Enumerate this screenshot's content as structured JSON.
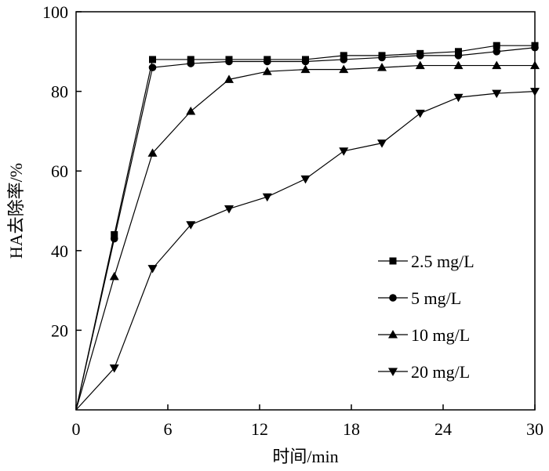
{
  "chart_data": {
    "type": "line",
    "xlabel": "时间/min",
    "ylabel": "HA去除率/%",
    "xlim": [
      0,
      30
    ],
    "ylim": [
      0,
      100
    ],
    "xticks": [
      0,
      6,
      12,
      18,
      24,
      30
    ],
    "yticks": [
      20,
      40,
      60,
      80,
      100
    ],
    "legend_position": "lower-right",
    "grid": false,
    "series": [
      {
        "name": "2.5 mg/L",
        "marker": "square",
        "x": [
          0,
          2.5,
          5,
          7.5,
          10,
          12.5,
          15,
          17.5,
          20,
          22.5,
          25,
          27.5,
          30
        ],
        "y": [
          0,
          44,
          88,
          88,
          88,
          88,
          88,
          89,
          89,
          89.5,
          90,
          91.5,
          91.5
        ]
      },
      {
        "name": "5 mg/L",
        "marker": "circle",
        "x": [
          0,
          2.5,
          5,
          7.5,
          10,
          12.5,
          15,
          17.5,
          20,
          22.5,
          25,
          27.5,
          30
        ],
        "y": [
          0,
          43,
          86,
          87,
          87.5,
          87.5,
          87.5,
          88,
          88.5,
          89,
          89,
          90,
          91
        ]
      },
      {
        "name": "10 mg/L",
        "marker": "triangle-up",
        "x": [
          0,
          2.5,
          5,
          7.5,
          10,
          12.5,
          15,
          17.5,
          20,
          22.5,
          25,
          27.5,
          30
        ],
        "y": [
          0,
          33.5,
          64.5,
          75,
          83,
          85,
          85.5,
          85.5,
          86,
          86.5,
          86.5,
          86.5,
          86.5
        ]
      },
      {
        "name": "20 mg/L",
        "marker": "triangle-down",
        "x": [
          0,
          2.5,
          5,
          7.5,
          10,
          12.5,
          15,
          17.5,
          20,
          22.5,
          25,
          27.5,
          30
        ],
        "y": [
          0,
          10.5,
          35.5,
          46.5,
          50.5,
          53.5,
          58,
          65,
          67,
          74.5,
          78.5,
          79.5,
          80
        ]
      }
    ]
  }
}
